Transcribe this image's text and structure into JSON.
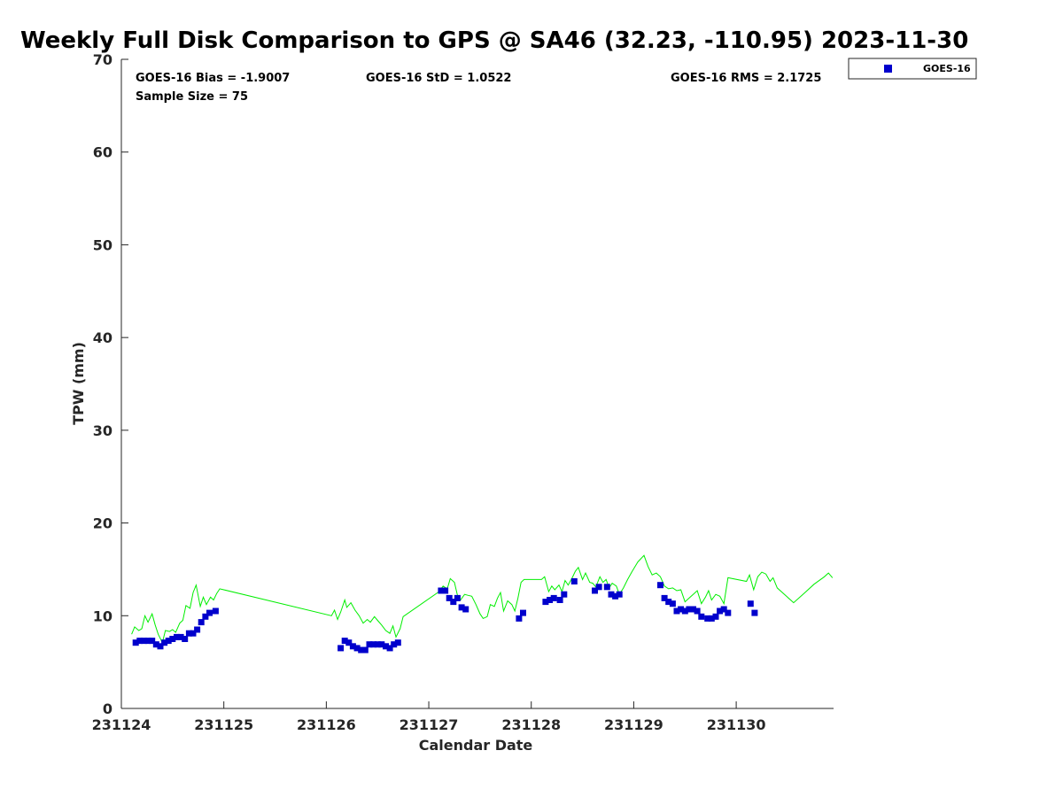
{
  "chart_data": {
    "type": "scatter",
    "title": "Weekly Full Disk Comparison to GPS @ SA46 (32.23, -110.95) 2023-11-30",
    "xlabel": "Calendar Date",
    "ylabel": "TPW (mm)",
    "xlim": [
      231124,
      231130.95
    ],
    "ylim": [
      0,
      70
    ],
    "x_ticks": [
      231124,
      231125,
      231126,
      231127,
      231128,
      231129,
      231130
    ],
    "x_tick_labels": [
      "231124",
      "231125",
      "231126",
      "231127",
      "231128",
      "231129",
      "231130"
    ],
    "y_ticks": [
      0,
      10,
      20,
      30,
      40,
      50,
      60,
      70
    ],
    "y_tick_labels": [
      "0",
      "10",
      "20",
      "30",
      "40",
      "50",
      "60",
      "70"
    ],
    "grid": false,
    "legend_position": "top-right",
    "stats": {
      "bias": "GOES-16 Bias = -1.9007",
      "std": "GOES-16 StD = 1.0522",
      "rms": "GOES-16 RMS = 2.1725",
      "sample": "Sample Size = 75"
    },
    "series": [
      {
        "name": "GOES-16",
        "kind": "scatter",
        "marker": "square",
        "color": "#0000cc",
        "points": [
          [
            231124.14,
            7.1
          ],
          [
            231124.18,
            7.3
          ],
          [
            231124.22,
            7.3
          ],
          [
            231124.26,
            7.3
          ],
          [
            231124.3,
            7.3
          ],
          [
            231124.34,
            6.9
          ],
          [
            231124.38,
            6.7
          ],
          [
            231124.42,
            7.1
          ],
          [
            231124.46,
            7.3
          ],
          [
            231124.5,
            7.5
          ],
          [
            231124.54,
            7.7
          ],
          [
            231124.58,
            7.7
          ],
          [
            231124.62,
            7.5
          ],
          [
            231124.66,
            8.1
          ],
          [
            231124.7,
            8.1
          ],
          [
            231124.74,
            8.5
          ],
          [
            231124.78,
            9.3
          ],
          [
            231124.82,
            9.9
          ],
          [
            231124.86,
            10.3
          ],
          [
            231124.92,
            10.5
          ],
          [
            231126.14,
            6.5
          ],
          [
            231126.18,
            7.3
          ],
          [
            231126.22,
            7.1
          ],
          [
            231126.26,
            6.7
          ],
          [
            231126.3,
            6.5
          ],
          [
            231126.34,
            6.3
          ],
          [
            231126.38,
            6.3
          ],
          [
            231126.42,
            6.9
          ],
          [
            231126.46,
            6.9
          ],
          [
            231126.5,
            6.9
          ],
          [
            231126.54,
            6.9
          ],
          [
            231126.58,
            6.7
          ],
          [
            231126.62,
            6.5
          ],
          [
            231126.66,
            6.9
          ],
          [
            231126.7,
            7.1
          ],
          [
            231127.12,
            12.7
          ],
          [
            231127.16,
            12.7
          ],
          [
            231127.2,
            11.9
          ],
          [
            231127.24,
            11.5
          ],
          [
            231127.28,
            11.9
          ],
          [
            231127.32,
            10.9
          ],
          [
            231127.36,
            10.7
          ],
          [
            231127.88,
            9.7
          ],
          [
            231127.92,
            10.3
          ],
          [
            231128.14,
            11.5
          ],
          [
            231128.18,
            11.7
          ],
          [
            231128.22,
            11.9
          ],
          [
            231128.28,
            11.7
          ],
          [
            231128.32,
            12.3
          ],
          [
            231128.42,
            13.7
          ],
          [
            231128.62,
            12.7
          ],
          [
            231128.66,
            13.1
          ],
          [
            231128.74,
            13.1
          ],
          [
            231128.78,
            12.3
          ],
          [
            231128.82,
            12.1
          ],
          [
            231128.86,
            12.3
          ],
          [
            231129.26,
            13.3
          ],
          [
            231129.3,
            11.9
          ],
          [
            231129.34,
            11.5
          ],
          [
            231129.38,
            11.3
          ],
          [
            231129.42,
            10.5
          ],
          [
            231129.46,
            10.7
          ],
          [
            231129.5,
            10.5
          ],
          [
            231129.54,
            10.7
          ],
          [
            231129.58,
            10.7
          ],
          [
            231129.62,
            10.5
          ],
          [
            231129.66,
            9.9
          ],
          [
            231129.72,
            9.7
          ],
          [
            231129.76,
            9.7
          ],
          [
            231129.8,
            9.9
          ],
          [
            231129.84,
            10.5
          ],
          [
            231129.88,
            10.7
          ],
          [
            231129.92,
            10.3
          ],
          [
            231130.14,
            11.3
          ],
          [
            231130.18,
            10.3
          ]
        ]
      },
      {
        "name": "",
        "kind": "line",
        "color": "#00ee00",
        "points": [
          [
            231124.1,
            8.0
          ],
          [
            231124.13,
            8.8
          ],
          [
            231124.17,
            8.4
          ],
          [
            231124.2,
            8.6
          ],
          [
            231124.23,
            10.0
          ],
          [
            231124.26,
            9.3
          ],
          [
            231124.3,
            10.2
          ],
          [
            231124.33,
            9.0
          ],
          [
            231124.36,
            8.0
          ],
          [
            231124.4,
            7.1
          ],
          [
            231124.43,
            8.4
          ],
          [
            231124.47,
            8.3
          ],
          [
            231124.5,
            8.5
          ],
          [
            231124.53,
            8.2
          ],
          [
            231124.57,
            9.2
          ],
          [
            231124.6,
            9.5
          ],
          [
            231124.63,
            11.1
          ],
          [
            231124.67,
            10.8
          ],
          [
            231124.7,
            12.5
          ],
          [
            231124.73,
            13.3
          ],
          [
            231124.77,
            11.0
          ],
          [
            231124.8,
            12.0
          ],
          [
            231124.83,
            11.2
          ],
          [
            231124.87,
            12.0
          ],
          [
            231124.9,
            11.7
          ],
          [
            231124.93,
            12.4
          ],
          [
            231124.96,
            12.9
          ],
          [
            231126.05,
            10.0
          ],
          [
            231126.08,
            10.6
          ],
          [
            231126.11,
            9.6
          ],
          [
            231126.14,
            10.4
          ],
          [
            231126.18,
            11.7
          ],
          [
            231126.2,
            10.9
          ],
          [
            231126.24,
            11.4
          ],
          [
            231126.28,
            10.6
          ],
          [
            231126.32,
            10.0
          ],
          [
            231126.36,
            9.2
          ],
          [
            231126.4,
            9.6
          ],
          [
            231126.43,
            9.3
          ],
          [
            231126.47,
            9.9
          ],
          [
            231126.5,
            9.5
          ],
          [
            231126.54,
            9.0
          ],
          [
            231126.58,
            8.4
          ],
          [
            231126.62,
            8.1
          ],
          [
            231126.65,
            8.9
          ],
          [
            231126.68,
            7.7
          ],
          [
            231126.72,
            8.6
          ],
          [
            231126.75,
            9.9
          ],
          [
            231127.1,
            12.6
          ],
          [
            231127.14,
            13.2
          ],
          [
            231127.18,
            12.9
          ],
          [
            231127.21,
            14.0
          ],
          [
            231127.25,
            13.6
          ],
          [
            231127.28,
            12.2
          ],
          [
            231127.31,
            11.7
          ],
          [
            231127.35,
            12.3
          ],
          [
            231127.38,
            12.2
          ],
          [
            231127.42,
            12.1
          ],
          [
            231127.46,
            11.2
          ],
          [
            231127.5,
            10.2
          ],
          [
            231127.53,
            9.7
          ],
          [
            231127.57,
            9.9
          ],
          [
            231127.6,
            11.2
          ],
          [
            231127.64,
            11.0
          ],
          [
            231127.67,
            11.9
          ],
          [
            231127.7,
            12.5
          ],
          [
            231127.73,
            10.5
          ],
          [
            231127.77,
            11.6
          ],
          [
            231127.81,
            11.2
          ],
          [
            231127.84,
            10.5
          ],
          [
            231127.87,
            11.9
          ],
          [
            231127.9,
            13.6
          ],
          [
            231127.93,
            13.9
          ],
          [
            231128.1,
            13.9
          ],
          [
            231128.13,
            14.2
          ],
          [
            231128.17,
            12.6
          ],
          [
            231128.2,
            13.2
          ],
          [
            231128.23,
            12.8
          ],
          [
            231128.27,
            13.3
          ],
          [
            231128.3,
            12.6
          ],
          [
            231128.33,
            13.8
          ],
          [
            231128.36,
            13.3
          ],
          [
            231128.4,
            14.1
          ],
          [
            231128.43,
            14.8
          ],
          [
            231128.46,
            15.2
          ],
          [
            231128.5,
            13.9
          ],
          [
            231128.53,
            14.6
          ],
          [
            231128.57,
            13.6
          ],
          [
            231128.6,
            13.5
          ],
          [
            231128.63,
            13.1
          ],
          [
            231128.67,
            14.2
          ],
          [
            231128.7,
            13.6
          ],
          [
            231128.73,
            13.9
          ],
          [
            231128.76,
            13.0
          ],
          [
            231128.79,
            13.5
          ],
          [
            231128.83,
            13.2
          ],
          [
            231128.86,
            12.3
          ],
          [
            231128.9,
            13.0
          ],
          [
            231128.94,
            13.9
          ],
          [
            231128.98,
            14.7
          ],
          [
            231129.04,
            15.8
          ],
          [
            231129.1,
            16.5
          ],
          [
            231129.14,
            15.3
          ],
          [
            231129.18,
            14.4
          ],
          [
            231129.22,
            14.6
          ],
          [
            231129.26,
            14.2
          ],
          [
            231129.3,
            13.2
          ],
          [
            231129.34,
            12.9
          ],
          [
            231129.38,
            13.0
          ],
          [
            231129.42,
            12.7
          ],
          [
            231129.46,
            12.8
          ],
          [
            231129.5,
            11.5
          ],
          [
            231129.54,
            11.9
          ],
          [
            231129.58,
            12.3
          ],
          [
            231129.62,
            12.7
          ],
          [
            231129.66,
            11.3
          ],
          [
            231129.7,
            12.0
          ],
          [
            231129.73,
            12.7
          ],
          [
            231129.76,
            11.7
          ],
          [
            231129.8,
            12.3
          ],
          [
            231129.84,
            12.1
          ],
          [
            231129.88,
            11.3
          ],
          [
            231129.92,
            14.1
          ],
          [
            231130.1,
            13.7
          ],
          [
            231130.13,
            14.4
          ],
          [
            231130.17,
            12.8
          ],
          [
            231130.21,
            14.2
          ],
          [
            231130.25,
            14.7
          ],
          [
            231130.29,
            14.5
          ],
          [
            231130.33,
            13.7
          ],
          [
            231130.36,
            14.1
          ],
          [
            231130.4,
            13.0
          ],
          [
            231130.5,
            12.0
          ],
          [
            231130.56,
            11.4
          ],
          [
            231130.66,
            12.4
          ],
          [
            231130.76,
            13.4
          ],
          [
            231130.86,
            14.2
          ],
          [
            231130.9,
            14.6
          ],
          [
            231130.94,
            14.1
          ]
        ]
      }
    ]
  }
}
